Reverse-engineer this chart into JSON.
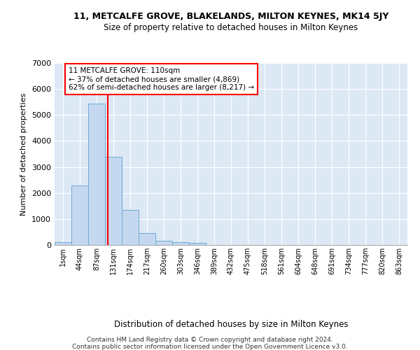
{
  "title1": "11, METCALFE GROVE, BLAKELANDS, MILTON KEYNES, MK14 5JY",
  "title2": "Size of property relative to detached houses in Milton Keynes",
  "xlabel": "Distribution of detached houses by size in Milton Keynes",
  "ylabel": "Number of detached properties",
  "footer1": "Contains HM Land Registry data © Crown copyright and database right 2024.",
  "footer2": "Contains public sector information licensed under the Open Government Licence v3.0.",
  "annotation_line1": "11 METCALFE GROVE: 110sqm",
  "annotation_line2": "← 37% of detached houses are smaller (4,869)",
  "annotation_line3": "62% of semi-detached houses are larger (8,217) →",
  "bar_color": "#c5d8f0",
  "bar_edge_color": "#6aaad4",
  "line_color": "red",
  "bg_color": "#dde8f5",
  "grid_color": "#ffffff",
  "categories": [
    "1sqm",
    "44sqm",
    "87sqm",
    "131sqm",
    "174sqm",
    "217sqm",
    "260sqm",
    "303sqm",
    "346sqm",
    "389sqm",
    "432sqm",
    "475sqm",
    "518sqm",
    "561sqm",
    "604sqm",
    "648sqm",
    "691sqm",
    "734sqm",
    "777sqm",
    "820sqm",
    "863sqm"
  ],
  "values": [
    100,
    2300,
    5450,
    3400,
    1350,
    450,
    175,
    100,
    75,
    0,
    0,
    0,
    0,
    0,
    0,
    0,
    0,
    0,
    0,
    0,
    0
  ],
  "ylim": [
    0,
    7000
  ],
  "yticks": [
    0,
    1000,
    2000,
    3000,
    4000,
    5000,
    6000,
    7000
  ],
  "red_line_x": 2.65
}
